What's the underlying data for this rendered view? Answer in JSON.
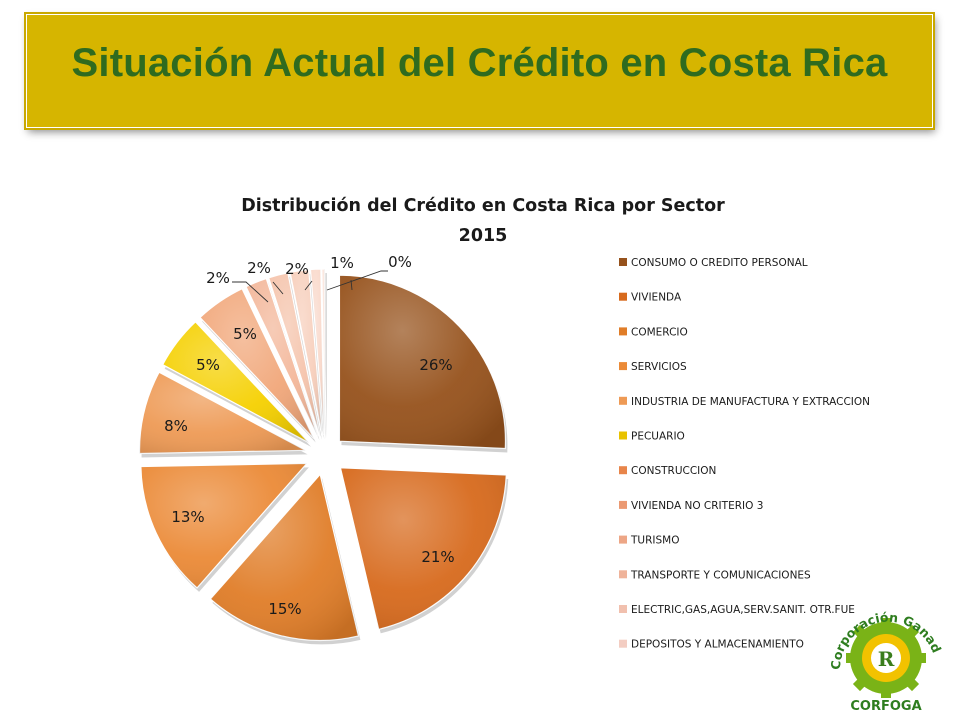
{
  "slide": {
    "title": "Situación Actual del Crédito en Costa Rica"
  },
  "logo": {
    "arc_text": "Corporación Ganadera",
    "bottom_text": "CORFOGA"
  },
  "chart_data": {
    "type": "pie",
    "title": "Distribución del Crédito en Costa Rica por Sector",
    "subtitle": "2015",
    "legend_position": "right",
    "categories": [
      "CONSUMO O CREDITO PERSONAL",
      "VIVIENDA",
      "COMERCIO",
      "SERVICIOS",
      "INDUSTRIA DE MANUFACTURA Y EXTRACCION",
      "PECUARIO",
      "CONSTRUCCION",
      "VIVIENDA NO CRITERIO 3",
      "TURISMO",
      "TRANSPORTE Y COMUNICACIONES",
      "ELECTRIC,GAS,AGUA,SERV.SANIT. OTR.FUE",
      "DEPOSITOS Y ALMACENAMIENTO"
    ],
    "values": [
      25.7,
      20.6,
      15.2,
      13.2,
      8.1,
      5.2,
      4.9,
      2.1,
      1.9,
      1.8,
      1.0,
      0.3
    ],
    "labels": [
      "26%",
      "21%",
      "15%",
      "13%",
      "8%",
      "5%",
      "5%",
      "2%",
      "2%",
      "2%",
      "1%",
      "0%"
    ],
    "colors": [
      "#96521c",
      "#d76a1d",
      "#e07d28",
      "#eb8a37",
      "#ee9a55",
      "#f5d000",
      "#f1a77a",
      "#f3b79a",
      "#f5c4ac",
      "#f7cfbc",
      "#f9d9cb",
      "#fbe5dc"
    ],
    "legend_marker_colors": [
      "#96521c",
      "#d76a1d",
      "#e07d28",
      "#eb8a37",
      "#ee9a55",
      "#e8c200",
      "#e8854a",
      "#eb9972",
      "#eda686",
      "#efb39a",
      "#f1c0ae",
      "#f3cdc2"
    ],
    "title_color": "#1a1a1a",
    "label_color": "#1a1a1a"
  }
}
